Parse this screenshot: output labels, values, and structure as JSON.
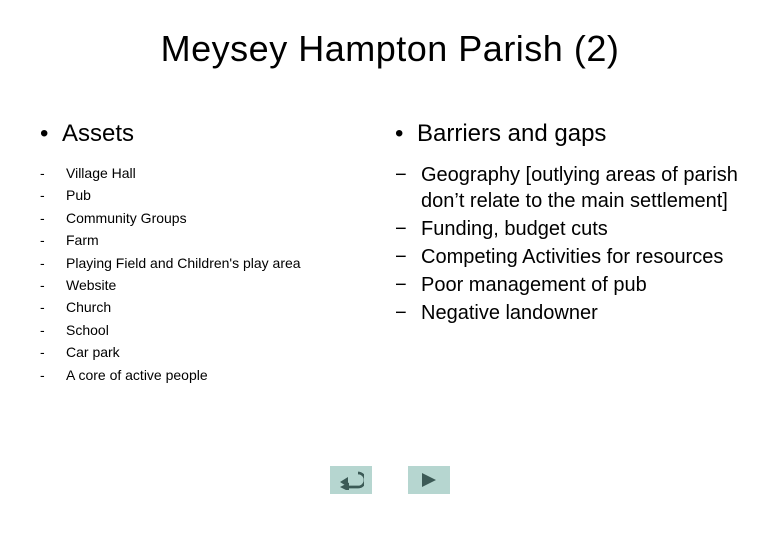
{
  "title": "Meysey Hampton Parish (2)",
  "left": {
    "heading": "Assets",
    "items": [
      "Village Hall",
      "Pub",
      "Community Groups",
      "Farm",
      "Playing Field and Children's play area",
      "Website",
      "Church",
      "School",
      "Car park",
      "A core of active people"
    ]
  },
  "right": {
    "heading": "Barriers and gaps",
    "items": [
      "Geography [outlying areas of parish don’t relate to the main settlement]",
      "Funding, budget cuts",
      "Competing Activities for resources",
      "Poor management of pub",
      "Negative landowner"
    ]
  },
  "style": {
    "background_color": "#ffffff",
    "text_color": "#000000",
    "title_fontsize": 36,
    "heading_fontsize": 24,
    "asset_fontsize": 14,
    "barrier_fontsize": 20,
    "bullet_char_heading": "•",
    "bullet_char_asset": "-",
    "bullet_char_barrier": "−",
    "nav_button_bg": "#b6d6d0",
    "nav_icon_color": "#3c5a56"
  }
}
